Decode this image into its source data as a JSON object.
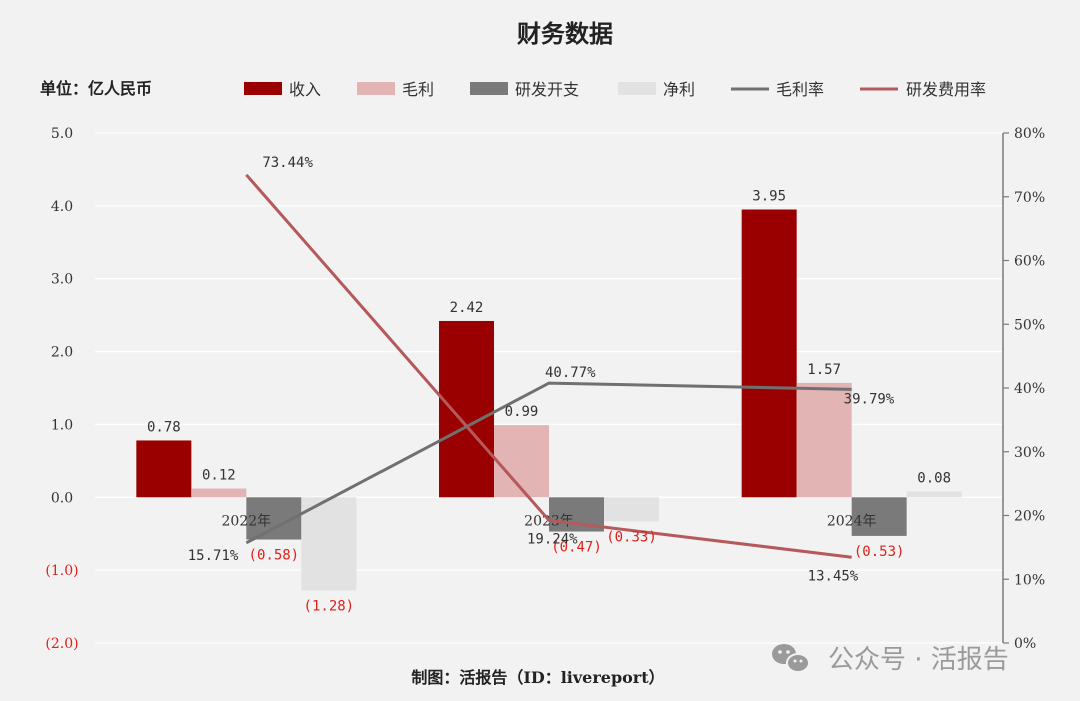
{
  "chart_data": {
    "type": "bar",
    "title": "财务数据",
    "unit_label": "单位：亿人民币",
    "categories": [
      "2022年",
      "2023年",
      "2024年"
    ],
    "series": [
      {
        "name": "收入",
        "kind": "bar",
        "color": "#9b0000",
        "values": [
          0.78,
          2.42,
          3.95
        ],
        "labels": [
          "0.78",
          "2.42",
          "3.95"
        ]
      },
      {
        "name": "毛利",
        "kind": "bar",
        "color": "#e2b4b4",
        "values": [
          0.12,
          0.99,
          1.57
        ],
        "labels": [
          "0.12",
          "0.99",
          "1.57"
        ]
      },
      {
        "name": "研发开支",
        "kind": "bar",
        "color": "#7a7a7a",
        "values": [
          -0.58,
          -0.47,
          -0.53
        ],
        "labels": [
          "(0.58)",
          "(0.47)",
          "(0.53)"
        ]
      },
      {
        "name": "净利",
        "kind": "bar",
        "color": "#e2e2e2",
        "values": [
          -1.28,
          -0.33,
          0.08
        ],
        "labels": [
          "(1.28)",
          "(0.33)",
          "0.08"
        ]
      },
      {
        "name": "毛利率",
        "kind": "line",
        "axis": "right",
        "color": "#707070",
        "values": [
          15.71,
          40.77,
          39.79
        ],
        "labels": [
          "15.71%",
          "40.77%",
          "39.79%"
        ]
      },
      {
        "name": "研发费用率",
        "kind": "line",
        "axis": "right",
        "color": "#b5595b",
        "values": [
          73.44,
          19.24,
          13.45
        ],
        "labels": [
          "73.44%",
          "19.24%",
          "13.45%"
        ]
      }
    ],
    "y_left": {
      "ylim": [
        -2,
        5
      ],
      "ticks": [
        5,
        4,
        3,
        2,
        1,
        0,
        -1,
        -2
      ],
      "tick_labels": [
        "5.0",
        "4.0",
        "3.0",
        "2.0",
        "1.0",
        "0.0",
        "(1.0)",
        "(2.0)"
      ]
    },
    "y_right": {
      "ylim": [
        0,
        80
      ],
      "ticks": [
        80,
        70,
        60,
        50,
        40,
        30,
        20,
        10,
        0
      ],
      "tick_labels": [
        "80%",
        "70%",
        "60%",
        "50%",
        "40%",
        "30%",
        "20%",
        "10%",
        "0%"
      ]
    },
    "grid": true,
    "legend_position": "top",
    "negative_label_color": "#e0201a"
  },
  "footer": "制图：活报告（ID：livereport）",
  "watermark": "公众号 · 活报告",
  "watermark_icon": "wechat-icon"
}
